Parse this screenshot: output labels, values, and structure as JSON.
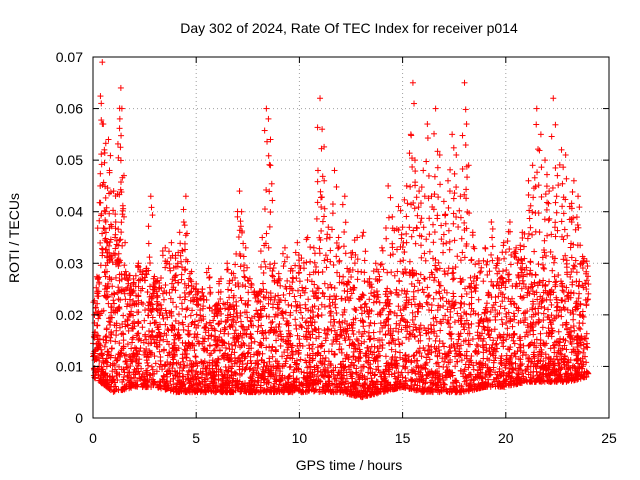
{
  "chart_data": {
    "type": "scatter",
    "title": "Day 302 of 2024, Rate Of TEC Index for receiver p014",
    "xlabel": "GPS time / hours",
    "ylabel": "ROTI / TECUs",
    "xlim": [
      0,
      25
    ],
    "ylim": [
      0,
      0.07
    ],
    "xticks": [
      0,
      5,
      10,
      15,
      20,
      25
    ],
    "xtick_labels": [
      "0",
      "5",
      "10",
      "15",
      "20",
      "25"
    ],
    "yticks": [
      0,
      0.01,
      0.02,
      0.03,
      0.04,
      0.05,
      0.06,
      0.07
    ],
    "ytick_labels": [
      "0",
      "0.01",
      "0.02",
      "0.03",
      "0.04",
      "0.05",
      "0.06",
      "0.07"
    ],
    "grid": true,
    "marker": "plus",
    "color": "#ff0000",
    "series": [
      {
        "name": "p014",
        "points": [
          [
            0.1,
            0.013
          ],
          [
            0.2,
            0.018
          ],
          [
            0.3,
            0.026
          ],
          [
            0.35,
            0.045
          ],
          [
            0.4,
            0.061
          ],
          [
            0.45,
            0.069
          ],
          [
            0.5,
            0.057
          ],
          [
            0.55,
            0.052
          ],
          [
            0.6,
            0.04
          ],
          [
            0.7,
            0.034
          ],
          [
            0.75,
            0.054
          ],
          [
            0.8,
            0.048
          ],
          [
            0.9,
            0.031
          ],
          [
            1.0,
            0.044
          ],
          [
            1.1,
            0.038
          ],
          [
            1.2,
            0.03
          ],
          [
            1.3,
            0.058
          ],
          [
            1.35,
            0.064
          ],
          [
            1.4,
            0.06
          ],
          [
            1.5,
            0.047
          ],
          [
            1.6,
            0.025
          ],
          [
            1.8,
            0.02
          ],
          [
            2.0,
            0.022
          ],
          [
            2.2,
            0.03
          ],
          [
            2.4,
            0.027
          ],
          [
            2.6,
            0.029
          ],
          [
            2.8,
            0.043
          ],
          [
            3.0,
            0.025
          ],
          [
            3.2,
            0.021
          ],
          [
            3.5,
            0.033
          ],
          [
            3.8,
            0.034
          ],
          [
            4.0,
            0.031
          ],
          [
            4.2,
            0.036
          ],
          [
            4.4,
            0.038
          ],
          [
            4.5,
            0.043
          ],
          [
            4.7,
            0.028
          ],
          [
            5.0,
            0.026
          ],
          [
            5.3,
            0.025
          ],
          [
            5.6,
            0.029
          ],
          [
            6.0,
            0.022
          ],
          [
            6.2,
            0.027
          ],
          [
            6.5,
            0.03
          ],
          [
            6.8,
            0.028
          ],
          [
            7.0,
            0.039
          ],
          [
            7.1,
            0.044
          ],
          [
            7.2,
            0.04
          ],
          [
            7.4,
            0.033
          ],
          [
            7.6,
            0.027
          ],
          [
            7.9,
            0.024
          ],
          [
            8.2,
            0.035
          ],
          [
            8.4,
            0.06
          ],
          [
            8.5,
            0.058
          ],
          [
            8.6,
            0.054
          ],
          [
            8.8,
            0.03
          ],
          [
            9.0,
            0.028
          ],
          [
            9.3,
            0.033
          ],
          [
            9.6,
            0.029
          ],
          [
            9.9,
            0.034
          ],
          [
            10.1,
            0.031
          ],
          [
            10.4,
            0.035
          ],
          [
            10.7,
            0.033
          ],
          [
            10.9,
            0.048
          ],
          [
            11.0,
            0.062
          ],
          [
            11.1,
            0.056
          ],
          [
            11.2,
            0.046
          ],
          [
            11.4,
            0.037
          ],
          [
            11.7,
            0.048
          ],
          [
            11.9,
            0.035
          ],
          [
            12.2,
            0.043
          ],
          [
            12.5,
            0.032
          ],
          [
            12.8,
            0.035
          ],
          [
            13.1,
            0.036
          ],
          [
            13.4,
            0.027
          ],
          [
            13.7,
            0.03
          ],
          [
            14.0,
            0.033
          ],
          [
            14.3,
            0.045
          ],
          [
            14.5,
            0.039
          ],
          [
            14.8,
            0.041
          ],
          [
            15.0,
            0.037
          ],
          [
            15.2,
            0.045
          ],
          [
            15.4,
            0.055
          ],
          [
            15.5,
            0.065
          ],
          [
            15.6,
            0.05
          ],
          [
            15.8,
            0.044
          ],
          [
            16.0,
            0.048
          ],
          [
            16.2,
            0.057
          ],
          [
            16.4,
            0.043
          ],
          [
            16.6,
            0.06
          ],
          [
            16.8,
            0.051
          ],
          [
            17.0,
            0.042
          ],
          [
            17.2,
            0.046
          ],
          [
            17.4,
            0.055
          ],
          [
            17.6,
            0.051
          ],
          [
            17.8,
            0.043
          ],
          [
            18.0,
            0.065
          ],
          [
            18.1,
            0.057
          ],
          [
            18.2,
            0.049
          ],
          [
            18.4,
            0.036
          ],
          [
            18.7,
            0.03
          ],
          [
            19.0,
            0.033
          ],
          [
            19.3,
            0.038
          ],
          [
            19.6,
            0.031
          ],
          [
            19.9,
            0.034
          ],
          [
            20.2,
            0.038
          ],
          [
            20.5,
            0.033
          ],
          [
            20.8,
            0.036
          ],
          [
            21.1,
            0.046
          ],
          [
            21.3,
            0.049
          ],
          [
            21.5,
            0.06
          ],
          [
            21.7,
            0.055
          ],
          [
            21.9,
            0.05
          ],
          [
            22.1,
            0.044
          ],
          [
            22.3,
            0.062
          ],
          [
            22.5,
            0.047
          ],
          [
            22.7,
            0.052
          ],
          [
            22.9,
            0.051
          ],
          [
            23.1,
            0.041
          ],
          [
            23.3,
            0.046
          ],
          [
            23.5,
            0.043
          ],
          [
            23.7,
            0.03
          ],
          [
            23.9,
            0.025
          ]
        ],
        "baseline_envelope": {
          "hours": [
            0,
            1,
            2,
            3,
            4,
            5,
            6,
            7,
            8,
            9,
            10,
            11,
            12,
            13,
            14,
            15,
            16,
            17,
            18,
            19,
            20,
            21,
            22,
            23,
            24
          ],
          "low": [
            0.008,
            0.005,
            0.006,
            0.006,
            0.005,
            0.005,
            0.005,
            0.005,
            0.005,
            0.005,
            0.005,
            0.005,
            0.005,
            0.004,
            0.005,
            0.006,
            0.005,
            0.005,
            0.005,
            0.006,
            0.006,
            0.007,
            0.007,
            0.007,
            0.008
          ],
          "high": [
            0.025,
            0.032,
            0.028,
            0.027,
            0.028,
            0.024,
            0.022,
            0.023,
            0.025,
            0.025,
            0.026,
            0.026,
            0.028,
            0.024,
            0.025,
            0.03,
            0.032,
            0.031,
            0.028,
            0.026,
            0.028,
            0.032,
            0.033,
            0.032,
            0.03
          ]
        }
      }
    ]
  }
}
